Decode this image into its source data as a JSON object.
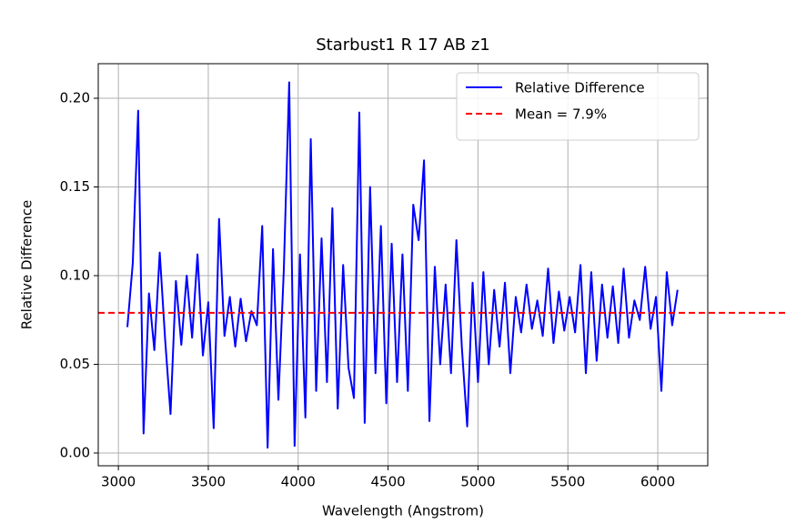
{
  "chart_data": {
    "type": "line",
    "title": "Starbust1 R 17 AB z1",
    "x_label": "Wavelength (Angstrom)",
    "y_label": "Relative Difference",
    "x": [
      3050,
      3080,
      3110,
      3140,
      3170,
      3200,
      3230,
      3260,
      3290,
      3320,
      3350,
      3380,
      3410,
      3440,
      3470,
      3500,
      3530,
      3560,
      3590,
      3620,
      3650,
      3680,
      3710,
      3740,
      3770,
      3800,
      3830,
      3860,
      3890,
      3920,
      3950,
      3980,
      4010,
      4040,
      4070,
      4100,
      4130,
      4160,
      4190,
      4220,
      4250,
      4280,
      4310,
      4340,
      4370,
      4400,
      4430,
      4460,
      4490,
      4520,
      4550,
      4580,
      4610,
      4640,
      4670,
      4700,
      4730,
      4760,
      4790,
      4820,
      4850,
      4880,
      4910,
      4940,
      4970,
      5000,
      5030,
      5060,
      5090,
      5120,
      5150,
      5180,
      5210,
      5240,
      5270,
      5300,
      5330,
      5360,
      5390,
      5420,
      5450,
      5480,
      5510,
      5540,
      5570,
      5600,
      5630,
      5660,
      5690,
      5720,
      5750,
      5780,
      5810,
      5840,
      5870,
      5900,
      5930,
      5960,
      5990,
      6020,
      6050,
      6080,
      6110
    ],
    "series": [
      {
        "name": "Relative Difference",
        "color": "#0000ff",
        "values": [
          0.071,
          0.107,
          0.193,
          0.011,
          0.09,
          0.058,
          0.113,
          0.064,
          0.022,
          0.097,
          0.061,
          0.1,
          0.065,
          0.112,
          0.055,
          0.085,
          0.014,
          0.132,
          0.066,
          0.088,
          0.06,
          0.087,
          0.063,
          0.08,
          0.072,
          0.128,
          0.003,
          0.115,
          0.03,
          0.103,
          0.209,
          0.004,
          0.112,
          0.02,
          0.177,
          0.035,
          0.121,
          0.04,
          0.138,
          0.025,
          0.106,
          0.048,
          0.031,
          0.192,
          0.017,
          0.15,
          0.045,
          0.128,
          0.028,
          0.118,
          0.04,
          0.112,
          0.035,
          0.14,
          0.12,
          0.165,
          0.018,
          0.105,
          0.05,
          0.095,
          0.045,
          0.12,
          0.06,
          0.015,
          0.096,
          0.04,
          0.102,
          0.05,
          0.092,
          0.06,
          0.096,
          0.045,
          0.088,
          0.068,
          0.095,
          0.07,
          0.086,
          0.066,
          0.104,
          0.062,
          0.091,
          0.069,
          0.088,
          0.068,
          0.106,
          0.045,
          0.102,
          0.052,
          0.095,
          0.065,
          0.094,
          0.062,
          0.104,
          0.065,
          0.086,
          0.075,
          0.105,
          0.07,
          0.088,
          0.035,
          0.102,
          0.072,
          0.092
        ]
      }
    ],
    "mean_line": {
      "name": "Mean = 7.9%",
      "value": 0.079,
      "color": "#ff0000"
    },
    "xlim": [
      2888,
      6278
    ],
    "xticks": [
      3000,
      3500,
      4000,
      4500,
      5000,
      5500,
      6000
    ],
    "ylim": [
      -0.0072,
      0.2195
    ],
    "yticks": [
      {
        "value": 0,
        "label": "0.00"
      },
      {
        "value": 0.05,
        "label": "0.05"
      },
      {
        "value": 0.1,
        "label": "0.10"
      },
      {
        "value": 0.15,
        "label": "0.15"
      },
      {
        "value": 0.2,
        "label": "0.20"
      }
    ],
    "grid": true,
    "legend": "upper right"
  }
}
